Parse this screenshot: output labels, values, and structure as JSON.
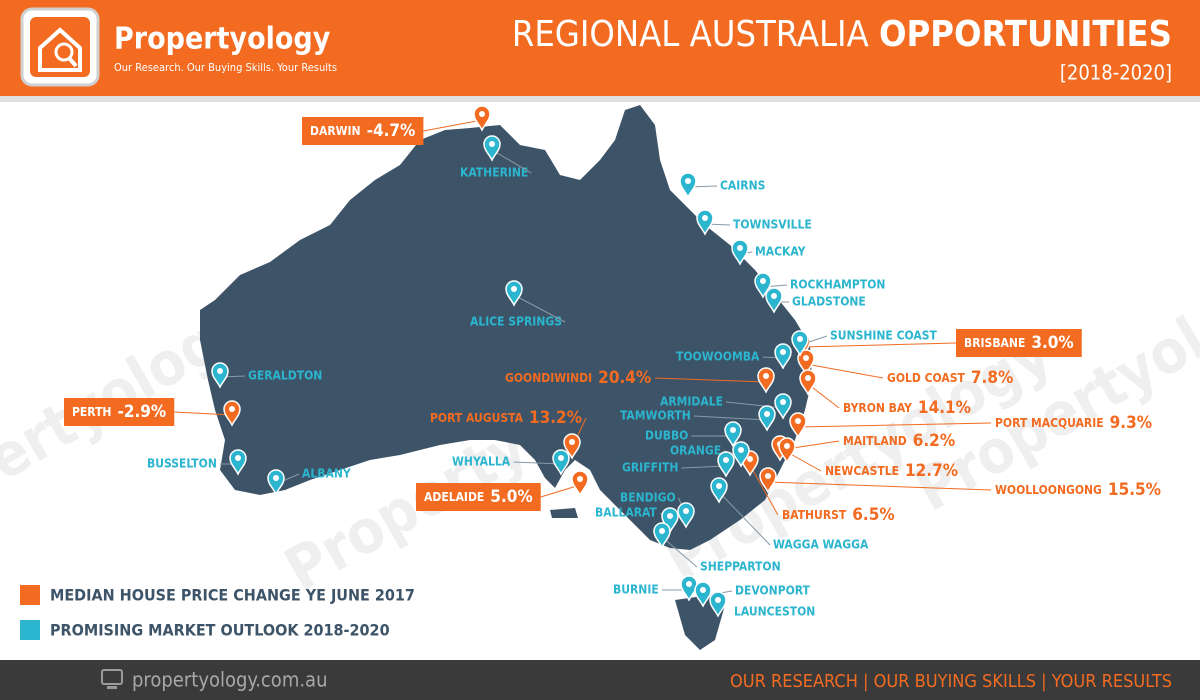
{
  "header": {
    "brand": "Propertyology",
    "tagline": "Our Research. Our Buying Skills. Your Results",
    "title_regular": "REGIONAL AUSTRALIA",
    "title_bold": "OPPORTUNITIES",
    "period": "[2018-2020]"
  },
  "watermark": "Propertyology",
  "price_change_markets": [
    {
      "name": "DARWIN",
      "change": "-4.7%"
    },
    {
      "name": "PERTH",
      "change": "-2.9%"
    },
    {
      "name": "ADELAIDE",
      "change": "5.0%"
    },
    {
      "name": "BRISBANE",
      "change": "3.0%"
    },
    {
      "name": "PORT AUGUSTA",
      "change": "13.2%"
    },
    {
      "name": "GOONDIWINDI",
      "change": "20.4%"
    },
    {
      "name": "GOLD COAST",
      "change": "7.8%"
    },
    {
      "name": "BYRON BAY",
      "change": "14.1%"
    },
    {
      "name": "PORT MACQUARIE",
      "change": "9.3%"
    },
    {
      "name": "MAITLAND",
      "change": "6.2%"
    },
    {
      "name": "NEWCASTLE",
      "change": "12.7%"
    },
    {
      "name": "WOOLLOONGONG",
      "change": "15.5%"
    },
    {
      "name": "BATHURST",
      "change": "6.5%"
    }
  ],
  "outlook_markets": [
    "KATHERINE",
    "CAIRNS",
    "TOWNSVILLE",
    "MACKAY",
    "ROCKHAMPTON",
    "GLADSTONE",
    "ALICE SPRINGS",
    "SUNSHINE COAST",
    "TOOWOOMBA",
    "GERALDTON",
    "ARMIDALE",
    "TAMWORTH",
    "DUBBO",
    "ORANGE",
    "GRIFFITH",
    "WHYALLA",
    "BUSSELTON",
    "ALBANY",
    "BENDIGO",
    "BALLARAT",
    "WAGGA WAGGA",
    "SHEPPARTON",
    "BURNIE",
    "DEVONPORT",
    "LAUNCESTON"
  ],
  "legend": [
    "MEDIAN HOUSE PRICE CHANGE YE JUNE 2017",
    "PROMISING MARKET OUTLOOK 2018-2020"
  ],
  "footer": {
    "website": "propertyology.com.au",
    "slogan": "OUR RESEARCH | OUR BUYING SKILLS | YOUR RESULTS"
  }
}
